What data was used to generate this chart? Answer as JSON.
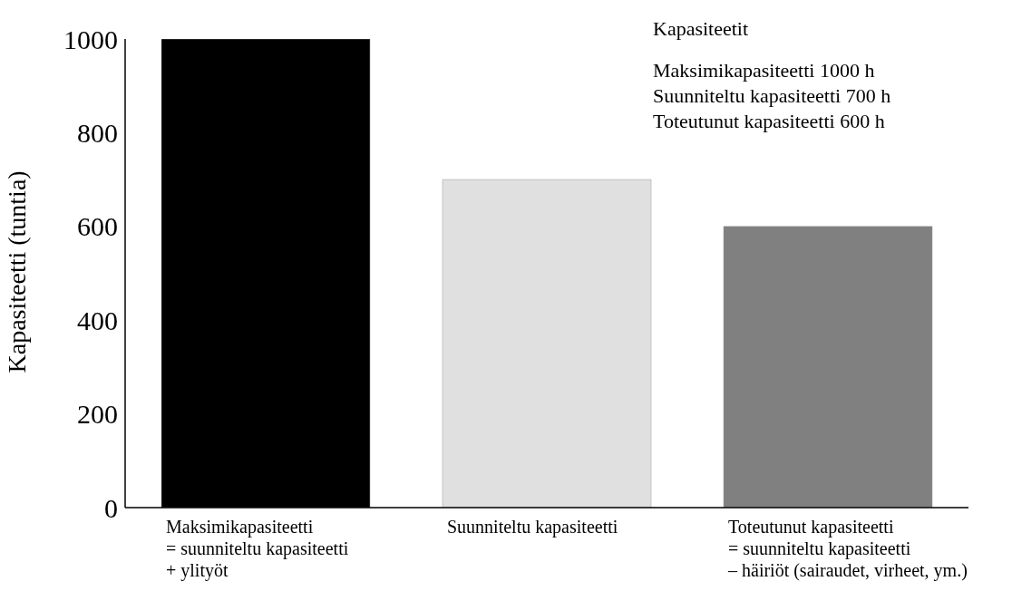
{
  "chart_data": {
    "type": "bar",
    "ylabel": "Kapasiteetti (tuntia)",
    "categories": [
      "Maksimikapasiteetti\n= suunniteltu kapasiteetti\n+ ylityöt",
      "Suunniteltu kapasiteetti",
      "Toteutunut kapasiteetti\n= suunniteltu kapasiteetti\n– häiriöt (sairaudet, virheet, ym.)"
    ],
    "values": [
      1000,
      700,
      600
    ],
    "colors": [
      "#000000",
      "#e0e0e0",
      "#808080"
    ],
    "ylim": [
      0,
      1000
    ],
    "yticks": [
      0,
      200,
      400,
      600,
      800,
      1000
    ],
    "grid": false,
    "legend": false,
    "annotations": [
      "Kapasiteetit",
      "Maksimikapasiteetti 1000 h",
      "Suunniteltu kapasiteetti 700 h",
      "Toteutunut kapasiteetti 600 h"
    ]
  }
}
